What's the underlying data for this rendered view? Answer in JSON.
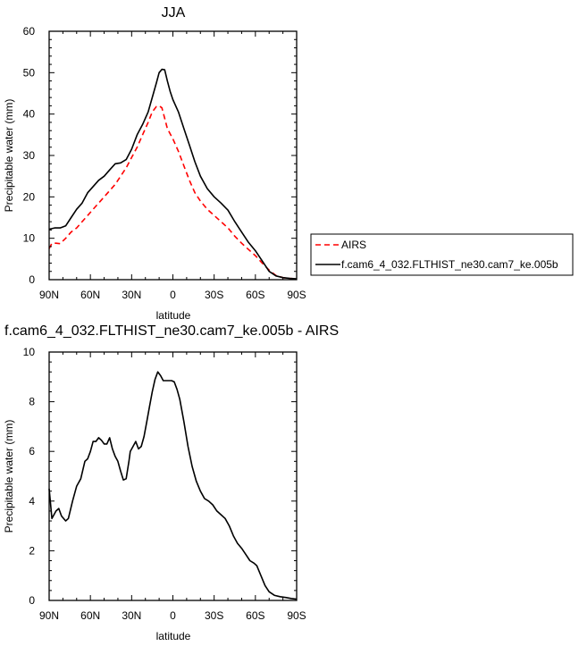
{
  "chart_data": [
    {
      "type": "line",
      "title": "JJA",
      "xlabel": "latitude",
      "ylabel": "Precipitable water (mm)",
      "x_reversed": true,
      "xlim": [
        -90,
        90
      ],
      "ylim": [
        0,
        60
      ],
      "xticks": [
        90,
        60,
        30,
        0,
        -30,
        -60,
        -90
      ],
      "xtick_labels": [
        "90N",
        "60N",
        "30N",
        "0",
        "30S",
        "60S",
        "90S"
      ],
      "yticks": [
        0,
        10,
        20,
        30,
        40,
        50,
        60
      ],
      "legend": "outside-right",
      "series": [
        {
          "name": "AIRS",
          "color": "#ff0000",
          "dash": "dashed",
          "points": [
            [
              90,
              7.5
            ],
            [
              88,
              8.8
            ],
            [
              85,
              8.8
            ],
            [
              82,
              8.7
            ],
            [
              78,
              10
            ],
            [
              74,
              11.5
            ],
            [
              70,
              12.5
            ],
            [
              66,
              14
            ],
            [
              62,
              15.5
            ],
            [
              58,
              17
            ],
            [
              54,
              18.5
            ],
            [
              50,
              20
            ],
            [
              46,
              21.5
            ],
            [
              42,
              23
            ],
            [
              38,
              25
            ],
            [
              34,
              27
            ],
            [
              30,
              29.5
            ],
            [
              26,
              32
            ],
            [
              22,
              35
            ],
            [
              18,
              38
            ],
            [
              15,
              40.5
            ],
            [
              12,
              41.8
            ],
            [
              10,
              42
            ],
            [
              8,
              41.5
            ],
            [
              6,
              39
            ],
            [
              4,
              36.5
            ],
            [
              0,
              34
            ],
            [
              -4,
              31
            ],
            [
              -8,
              27.5
            ],
            [
              -12,
              24
            ],
            [
              -16,
              21
            ],
            [
              -20,
              19
            ],
            [
              -25,
              17
            ],
            [
              -30,
              15.5
            ],
            [
              -35,
              14
            ],
            [
              -40,
              12.5
            ],
            [
              -45,
              10.5
            ],
            [
              -50,
              8.8
            ],
            [
              -55,
              7.3
            ],
            [
              -60,
              5.8
            ],
            [
              -65,
              4
            ],
            [
              -70,
              2.3
            ],
            [
              -75,
              1
            ],
            [
              -80,
              0.5
            ],
            [
              -85,
              0.3
            ],
            [
              -90,
              0.2
            ]
          ]
        },
        {
          "name": "f.cam6_4_032.FLTHIST_ne30.cam7_ke.005b",
          "color": "#000000",
          "dash": "solid",
          "points": [
            [
              90,
              12.2
            ],
            [
              86,
              12.5
            ],
            [
              82,
              12.5
            ],
            [
              78,
              13
            ],
            [
              74,
              15
            ],
            [
              70,
              17
            ],
            [
              66,
              18.5
            ],
            [
              62,
              21
            ],
            [
              58,
              22.5
            ],
            [
              54,
              24
            ],
            [
              50,
              25
            ],
            [
              46,
              26.5
            ],
            [
              42,
              28
            ],
            [
              38,
              28.2
            ],
            [
              34,
              29
            ],
            [
              30,
              31.5
            ],
            [
              26,
              35
            ],
            [
              22,
              37.5
            ],
            [
              18,
              40.5
            ],
            [
              15,
              44
            ],
            [
              12,
              47.5
            ],
            [
              10,
              50
            ],
            [
              8,
              50.8
            ],
            [
              6,
              50.7
            ],
            [
              4,
              48
            ],
            [
              2,
              45.5
            ],
            [
              0,
              43.5
            ],
            [
              -4,
              40.5
            ],
            [
              -8,
              36.5
            ],
            [
              -12,
              32.5
            ],
            [
              -16,
              28.5
            ],
            [
              -20,
              25
            ],
            [
              -25,
              22
            ],
            [
              -30,
              20
            ],
            [
              -35,
              18.5
            ],
            [
              -40,
              16.8
            ],
            [
              -45,
              14
            ],
            [
              -50,
              11.5
            ],
            [
              -55,
              9
            ],
            [
              -60,
              7
            ],
            [
              -65,
              4.5
            ],
            [
              -70,
              2
            ],
            [
              -75,
              0.9
            ],
            [
              -80,
              0.5
            ],
            [
              -85,
              0.3
            ],
            [
              -90,
              0.2
            ]
          ]
        }
      ]
    },
    {
      "type": "line",
      "title": "f.cam6_4_032.FLTHIST_ne30.cam7_ke.005b - AIRS",
      "xlabel": "latitude",
      "ylabel": "Precipitable water (mm)",
      "x_reversed": true,
      "xlim": [
        -90,
        90
      ],
      "ylim": [
        0,
        10
      ],
      "xticks": [
        90,
        60,
        30,
        0,
        -30,
        -60,
        -90
      ],
      "xtick_labels": [
        "90N",
        "60N",
        "30N",
        "0",
        "30S",
        "60S",
        "90S"
      ],
      "yticks": [
        0,
        2,
        4,
        6,
        8,
        10
      ],
      "series": [
        {
          "color": "#000000",
          "dash": "solid",
          "points": [
            [
              90,
              4.5
            ],
            [
              88,
              3.3
            ],
            [
              85,
              3.6
            ],
            [
              83,
              3.7
            ],
            [
              81,
              3.4
            ],
            [
              78,
              3.2
            ],
            [
              76,
              3.3
            ],
            [
              73,
              4
            ],
            [
              70,
              4.6
            ],
            [
              67,
              4.9
            ],
            [
              64,
              5.6
            ],
            [
              62,
              5.7
            ],
            [
              60,
              6.0
            ],
            [
              58,
              6.4
            ],
            [
              56,
              6.4
            ],
            [
              54,
              6.55
            ],
            [
              52,
              6.45
            ],
            [
              50,
              6.3
            ],
            [
              48,
              6.3
            ],
            [
              46,
              6.55
            ],
            [
              44,
              6.1
            ],
            [
              42,
              5.8
            ],
            [
              40,
              5.6
            ],
            [
              38,
              5.2
            ],
            [
              36,
              4.85
            ],
            [
              34,
              4.9
            ],
            [
              32,
              5.6
            ],
            [
              31,
              6.0
            ],
            [
              29,
              6.2
            ],
            [
              27,
              6.4
            ],
            [
              25,
              6.1
            ],
            [
              23,
              6.2
            ],
            [
              21,
              6.6
            ],
            [
              19,
              7.2
            ],
            [
              17,
              7.8
            ],
            [
              15,
              8.4
            ],
            [
              13,
              8.9
            ],
            [
              11,
              9.2
            ],
            [
              9,
              9.05
            ],
            [
              7,
              8.85
            ],
            [
              5,
              8.85
            ],
            [
              3,
              8.85
            ],
            [
              1,
              8.85
            ],
            [
              -1,
              8.8
            ],
            [
              -3,
              8.5
            ],
            [
              -5,
              8.1
            ],
            [
              -8,
              7.2
            ],
            [
              -11,
              6.2
            ],
            [
              -14,
              5.4
            ],
            [
              -17,
              4.8
            ],
            [
              -20,
              4.4
            ],
            [
              -23,
              4.1
            ],
            [
              -26,
              4.0
            ],
            [
              -29,
              3.85
            ],
            [
              -32,
              3.6
            ],
            [
              -35,
              3.45
            ],
            [
              -38,
              3.3
            ],
            [
              -41,
              3.0
            ],
            [
              -44,
              2.6
            ],
            [
              -47,
              2.3
            ],
            [
              -50,
              2.1
            ],
            [
              -53,
              1.85
            ],
            [
              -56,
              1.6
            ],
            [
              -59,
              1.5
            ],
            [
              -61,
              1.4
            ],
            [
              -64,
              1.0
            ],
            [
              -67,
              0.6
            ],
            [
              -70,
              0.35
            ],
            [
              -74,
              0.2
            ],
            [
              -78,
              0.15
            ],
            [
              -82,
              0.12
            ],
            [
              -86,
              0.08
            ],
            [
              -90,
              0.05
            ]
          ]
        }
      ]
    }
  ]
}
